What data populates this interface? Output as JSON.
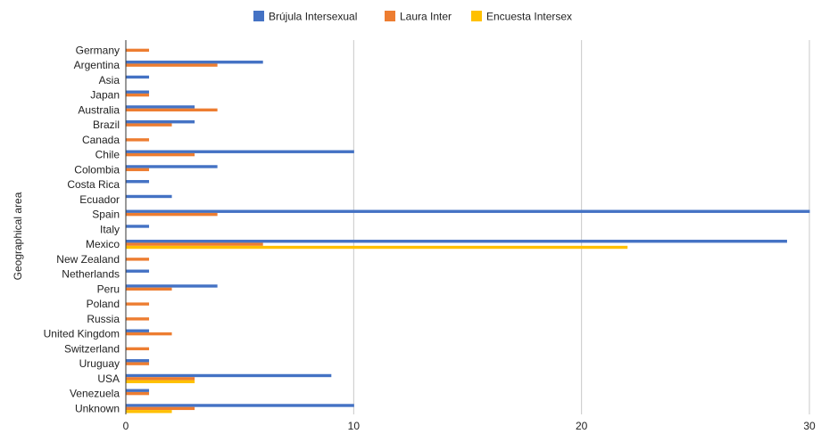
{
  "chart_data": {
    "type": "bar",
    "orientation": "horizontal",
    "ylabel": "Geographical area",
    "xlim": [
      0,
      30
    ],
    "xticks": [
      "0",
      "10",
      "20",
      "30"
    ],
    "grid": true,
    "legend_position": "top",
    "categories": [
      "Germany",
      "Argentina",
      "Asia",
      "Japan",
      "Australia",
      "Brazil",
      "Canada",
      "Chile",
      "Colombia",
      "Costa Rica",
      "Ecuador",
      "Spain",
      "Italy",
      "Mexico",
      "New Zealand",
      "Netherlands",
      "Peru",
      "Poland",
      "Russia",
      "United Kingdom",
      "Switzerland",
      "Uruguay",
      "USA",
      "Venezuela",
      "Unknown"
    ],
    "series": [
      {
        "name": "Brújula Intersexual",
        "color": "#4472C4",
        "values": [
          0,
          6,
          1,
          1,
          3,
          3,
          0,
          10,
          4,
          1,
          2,
          30,
          1,
          29,
          0,
          1,
          4,
          0,
          0,
          1,
          0,
          1,
          9,
          1,
          10
        ]
      },
      {
        "name": "Laura Inter",
        "color": "#ED7D31",
        "values": [
          1,
          4,
          0,
          1,
          4,
          2,
          1,
          3,
          1,
          0,
          0,
          4,
          0,
          6,
          1,
          0,
          2,
          1,
          1,
          2,
          1,
          1,
          3,
          1,
          3
        ]
      },
      {
        "name": "Encuesta Intersex",
        "color": "#FFC000",
        "values": [
          0,
          0,
          0,
          0,
          0,
          0,
          0,
          0,
          0,
          0,
          0,
          0,
          0,
          22,
          0,
          0,
          0,
          0,
          0,
          0,
          0,
          0,
          3,
          0,
          2
        ]
      }
    ]
  }
}
